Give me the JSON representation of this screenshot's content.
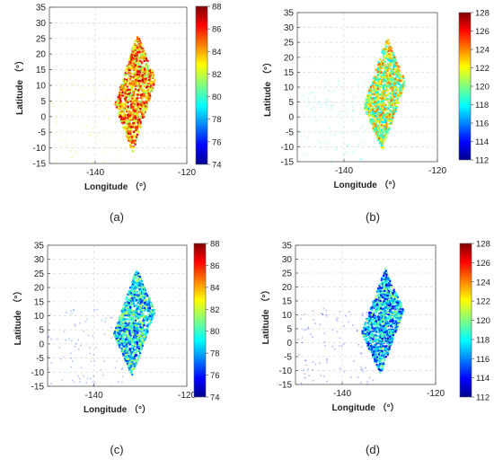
{
  "chart_data": [
    {
      "type": "heatmap",
      "panel_label": "(a)",
      "xlabel": "Longitude （°）",
      "ylabel": "Latitude （°）",
      "xlim": [
        -150,
        -120
      ],
      "ylim": [
        -15,
        35
      ],
      "x_ticks": [
        "-140",
        "-120"
      ],
      "y_ticks": [
        "-15",
        "-10",
        "-5",
        "0",
        "5",
        "10",
        "15",
        "20",
        "25",
        "30",
        "35"
      ],
      "colorbar_ticks": [
        "74",
        "76",
        "78",
        "80",
        "82",
        "84",
        "86",
        "88"
      ],
      "colorbar_range": [
        74,
        88
      ],
      "colormap": "jet",
      "grid": true,
      "swath": {
        "corners": [
          [
            -136,
            4
          ],
          [
            -131,
            27
          ],
          [
            -127,
            12
          ],
          [
            -132,
            -11
          ]
        ],
        "mean_value": 84
      }
    },
    {
      "type": "heatmap",
      "panel_label": "(b)",
      "xlabel": "Longitude （°）",
      "ylabel": "Latitude （°）",
      "xlim": [
        -150,
        -120
      ],
      "ylim": [
        -15,
        35
      ],
      "x_ticks": [
        "-140",
        "-120"
      ],
      "y_ticks": [
        "-15",
        "-10",
        "-5",
        "0",
        "5",
        "10",
        "15",
        "20",
        "25",
        "30",
        "35"
      ],
      "colorbar_ticks": [
        "112",
        "114",
        "116",
        "118",
        "120",
        "122",
        "124",
        "126",
        "128"
      ],
      "colorbar_range": [
        112,
        128
      ],
      "colormap": "jet",
      "grid": true,
      "swath": {
        "corners": [
          [
            -136,
            4
          ],
          [
            -131,
            27
          ],
          [
            -127,
            12
          ],
          [
            -132,
            -11
          ]
        ],
        "mean_value": 121
      }
    },
    {
      "type": "heatmap",
      "panel_label": "(c)",
      "xlabel": "Longitude （°）",
      "ylabel": "Latitude （°）",
      "xlim": [
        -150,
        -120
      ],
      "ylim": [
        -15,
        35
      ],
      "x_ticks": [
        "-140",
        "-120"
      ],
      "y_ticks": [
        "-15",
        "-10",
        "-5",
        "0",
        "5",
        "10",
        "15",
        "20",
        "25",
        "30",
        "35"
      ],
      "colorbar_ticks": [
        "74",
        "76",
        "78",
        "80",
        "82",
        "84",
        "86",
        "88"
      ],
      "colorbar_range": [
        74,
        88
      ],
      "colormap": "jet",
      "grid": true,
      "swath": {
        "corners": [
          [
            -136,
            4
          ],
          [
            -131,
            27
          ],
          [
            -127,
            12
          ],
          [
            -132,
            -11
          ]
        ],
        "mean_value": 79
      }
    },
    {
      "type": "heatmap",
      "panel_label": "(d)",
      "xlabel": "Longitude （°）",
      "ylabel": "Latitude （°）",
      "xlim": [
        -150,
        -120
      ],
      "ylim": [
        -15,
        35
      ],
      "x_ticks": [
        "-140",
        "-120"
      ],
      "y_ticks": [
        "-15",
        "-10",
        "-5",
        "0",
        "5",
        "10",
        "15",
        "20",
        "25",
        "30",
        "35"
      ],
      "colorbar_ticks": [
        "112",
        "114",
        "116",
        "118",
        "120",
        "122",
        "124",
        "126",
        "128"
      ],
      "colorbar_range": [
        112,
        128
      ],
      "colormap": "jet",
      "grid": true,
      "swath": {
        "corners": [
          [
            -136,
            4
          ],
          [
            -131,
            27
          ],
          [
            -127,
            12
          ],
          [
            -132,
            -11
          ]
        ],
        "mean_value": 117
      }
    }
  ]
}
